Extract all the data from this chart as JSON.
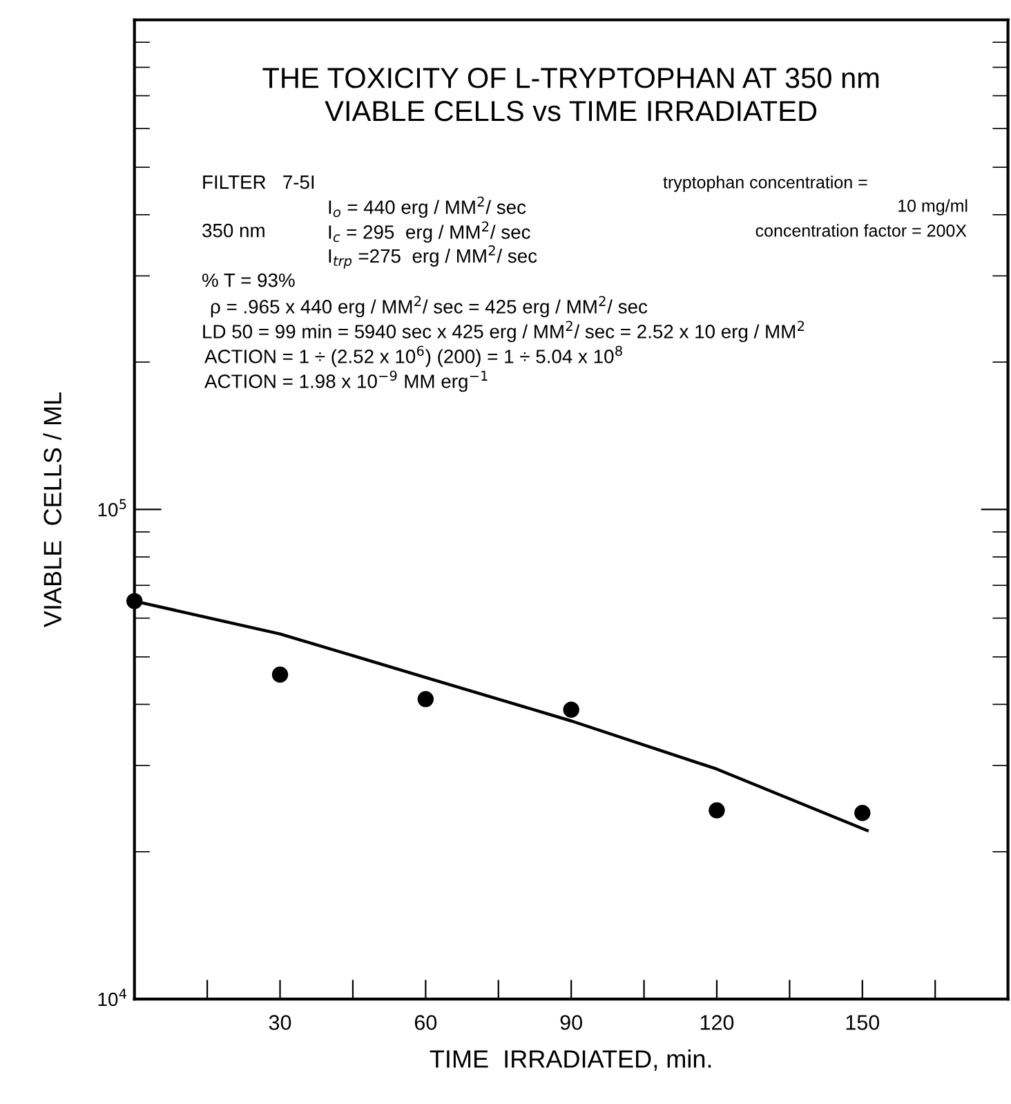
{
  "chart_data": {
    "type": "scatter",
    "title": "THE TOXICITY OF L-TRYPTOPHAN AT 350 nm\nVIABLE CELLS vs TIME IRRADIATED",
    "xlabel": "TIME  IRRADIATED, min.",
    "ylabel": "VIABLE  CELLS / ML",
    "log": "y",
    "marker": "circle",
    "grid": false,
    "legend": false,
    "xlim": [
      0,
      180
    ],
    "xticks": [
      {
        "value": 15,
        "label": null
      },
      30,
      {
        "value": 45,
        "label": null
      },
      60,
      {
        "value": 75,
        "label": null
      },
      90,
      {
        "value": 105,
        "label": null
      },
      120,
      {
        "value": 135,
        "label": null
      },
      150,
      {
        "value": 165,
        "label": null
      }
    ],
    "ylim": [
      10000,
      1000000
    ],
    "yticks": [
      {
        "value": 10000,
        "label": "10$^{4}$"
      },
      {
        "value": 100000,
        "label": "10$^{5}$"
      }
    ],
    "series": [
      {
        "color": "#000000",
        "x": [
          0,
          30,
          60,
          90,
          120,
          150
        ],
        "values": [
          65000,
          46000,
          41000,
          39000,
          24300,
          24000
        ]
      },
      {
        "type": "line",
        "color": "#000000",
        "marker": "none",
        "line_style": "solid",
        "x": [
          0,
          30,
          60,
          90,
          120,
          151
        ],
        "values": [
          65000,
          55700,
          45400,
          37000,
          29500,
          22100
        ]
      }
    ],
    "annotations": [
      "FILTER   7-5I",
      "I$_{o}$ = 440 erg / MM$^{2}$/ sec",
      "350 nm",
      "I$_{c}$ = 295  erg / MM$^{2}$/ sec",
      "I$_{trp}$ =275  erg / MM$^{2}$/ sec",
      "% T = 93%",
      "ρ = .965 x 440 erg / MM$^{2}$/ sec = 425 erg / MM$^{2}$/ sec",
      "LD 50 = 99 min = 5940 sec x 425 erg / MM$^{2}$/ sec = 2.52 x 10 erg / MM$^{2}$",
      "ACTION = 1 ÷ (2.52 x 10$^{6}$) (200) = 1 ÷ 5.04 x 10$^{8}$",
      "ACTION = 1.98 x 10$^{−9}$ MM erg$^{−1}$",
      "tryptophan concentration =",
      "10 mg/ml",
      "concentration factor = 200X"
    ]
  }
}
